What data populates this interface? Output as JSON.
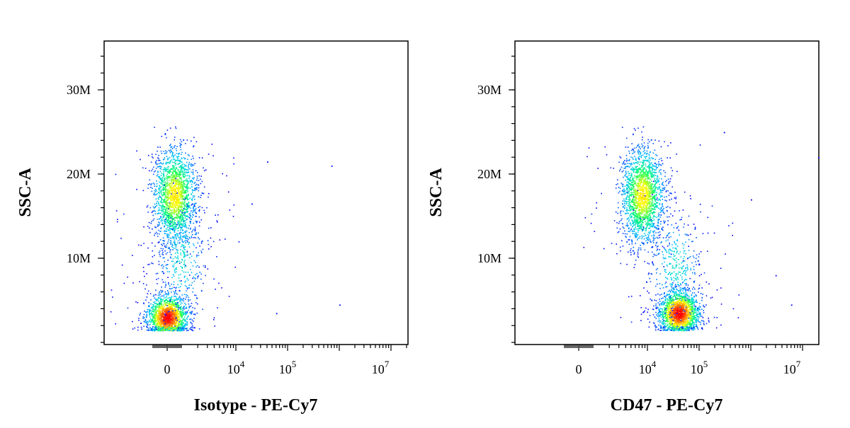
{
  "chart_data": [
    {
      "type": "scatter",
      "title": "",
      "xlabel": "Isotype - PE-Cy7",
      "ylabel": "SSC-A",
      "x_scale": "biexponential",
      "y_scale": "linear",
      "y_ticks": [
        {
          "value": 10000000,
          "label": "10M"
        },
        {
          "value": 20000000,
          "label": "20M"
        },
        {
          "value": 30000000,
          "label": "30M"
        }
      ],
      "x_ticks": [
        {
          "value": 0,
          "label": "0"
        },
        {
          "value": 10000,
          "label": "10",
          "sup": "4"
        },
        {
          "value": 100000,
          "label": "10",
          "sup": "5"
        },
        {
          "value": 10000000,
          "label": "10",
          "sup": "7"
        }
      ],
      "ylim": [
        0,
        36000000
      ],
      "grid": false,
      "legend": "none",
      "colormap": [
        "#0000ff",
        "#00c8ff",
        "#00ff66",
        "#ffff00",
        "#ff8000",
        "#ff0000"
      ],
      "populations": [
        {
          "x_center": 0,
          "y_center": 3000000,
          "events": 1600,
          "density": "highest"
        },
        {
          "x_center": 500,
          "y_center": 17500000,
          "events": 1800,
          "density": "high"
        },
        {
          "x_center": 1000,
          "y_center": 10000000,
          "events": 350,
          "density": "low"
        }
      ],
      "scattered_events": [
        {
          "x": 40000,
          "y": 21500000
        },
        {
          "x": 700000,
          "y": 21000000
        },
        {
          "x": 20000,
          "y": 16500000
        },
        {
          "x": 1000000,
          "y": 4500000
        },
        {
          "x": 60000,
          "y": 3500000
        }
      ]
    },
    {
      "type": "scatter",
      "title": "",
      "xlabel": "CD47 - PE-Cy7",
      "ylabel": "SSC-A",
      "x_scale": "biexponential",
      "y_scale": "linear",
      "y_ticks": [
        {
          "value": 10000000,
          "label": "10M"
        },
        {
          "value": 20000000,
          "label": "20M"
        },
        {
          "value": 30000000,
          "label": "30M"
        }
      ],
      "x_ticks": [
        {
          "value": 0,
          "label": "0"
        },
        {
          "value": 10000,
          "label": "10",
          "sup": "4"
        },
        {
          "value": 100000,
          "label": "10",
          "sup": "5"
        },
        {
          "value": 10000000,
          "label": "10",
          "sup": "7"
        }
      ],
      "ylim": [
        0,
        36000000
      ],
      "grid": false,
      "legend": "none",
      "colormap": [
        "#0000ff",
        "#00c8ff",
        "#00ff66",
        "#ffff00",
        "#ff8000",
        "#ff0000"
      ],
      "populations": [
        {
          "x_center": 8000,
          "y_center": 17500000,
          "events": 1900,
          "density": "high"
        },
        {
          "x_center": 40000,
          "y_center": 3500000,
          "events": 1700,
          "density": "highest"
        },
        {
          "x_center": 35000,
          "y_center": 9000000,
          "events": 350,
          "density": "low"
        }
      ],
      "scattered_events": [
        {
          "x": 300000,
          "y": 25000000
        },
        {
          "x": 20000000,
          "y": 22000000
        },
        {
          "x": 1000000,
          "y": 17000000
        },
        {
          "x": 3000000,
          "y": 8000000
        },
        {
          "x": 6000000,
          "y": 4500000
        }
      ]
    }
  ]
}
